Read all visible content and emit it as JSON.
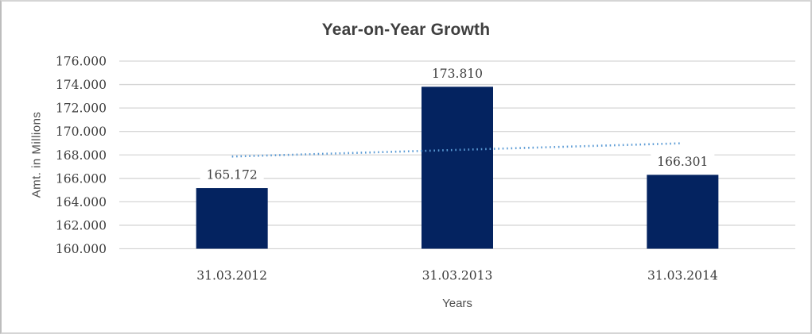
{
  "chart_data": {
    "type": "bar",
    "title": "Year-on-Year Growth",
    "xlabel": "Years",
    "ylabel": "Amt. in Millions",
    "categories": [
      "31.03.2012",
      "31.03.2013",
      "31.03.2014"
    ],
    "values": [
      165.172,
      173.81,
      166.301
    ],
    "data_labels": [
      "165.172",
      "173.810",
      "166.301"
    ],
    "ylim": [
      160,
      176
    ],
    "ytick_step": 2,
    "ytick_labels": [
      "160.000",
      "162.000",
      "164.000",
      "166.000",
      "168.000",
      "170.000",
      "172.000",
      "174.000",
      "176.000"
    ],
    "grid": true,
    "legend": "none",
    "trendline": {
      "type": "linear",
      "style": "dotted",
      "endpoints": [
        167.863,
        168.992
      ]
    },
    "colors": {
      "bar": "#042360",
      "trendline": "#5b9bd5",
      "gridline": "#d6d6d6",
      "text": "#3d3d3d",
      "title_text": "#3f3f3f"
    }
  }
}
